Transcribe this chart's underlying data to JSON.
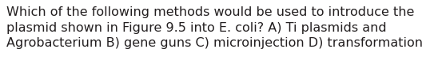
{
  "text": "Which of the following methods would be used to introduce the\nplasmid shown in Figure 9.5 into E. coli? A) Ti plasmids and\nAgrobacterium B) gene guns C) microinjection D) transformation",
  "background_color": "#ffffff",
  "text_color": "#231f20",
  "font_size": 11.5,
  "fig_width": 5.58,
  "fig_height": 1.05,
  "dpi": 100
}
